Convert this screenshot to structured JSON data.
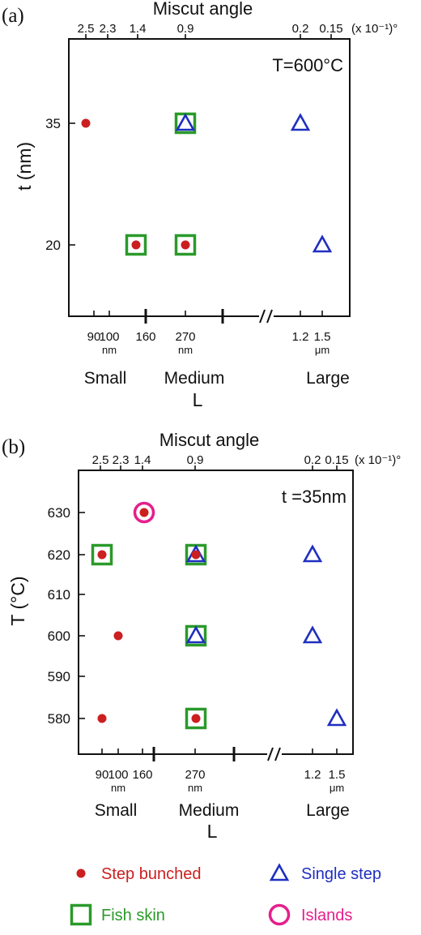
{
  "colors": {
    "step_bunched": "#cc1f1f",
    "fish_skin": "#2a9a2a",
    "single_step": "#1f2fc0",
    "islands": "#e61e8c",
    "axis": "#111111"
  },
  "chart_data": [
    {
      "type": "scatter",
      "panel_label": "(a)",
      "title": "Miscut angle",
      "annotation": "T=600°C",
      "top_tick_labels": [
        "2.5",
        "2.3",
        "1.4",
        "0.9",
        "0.2",
        "0.15"
      ],
      "top_unit": "(x 10⁻¹)°",
      "bottom_ticks": [
        {
          "main": "90",
          "sub": ""
        },
        {
          "main": "100",
          "sub": "nm"
        },
        {
          "main": "160",
          "sub": ""
        },
        {
          "main": "270",
          "sub": "nm"
        },
        {
          "main": "1.2",
          "sub": ""
        },
        {
          "main": "1.5",
          "sub": "μm"
        }
      ],
      "size_groups": [
        "Small",
        "Medium",
        "Large"
      ],
      "xlabel": "L",
      "ylabel": "t (nm)",
      "y_ticks": [
        "35",
        "20"
      ],
      "ylim": [
        10,
        45
      ],
      "points": [
        {
          "x": "100 nm",
          "y": 35,
          "morphology": [
            "step_bunched"
          ]
        },
        {
          "x": "270 nm",
          "y": 35,
          "morphology": [
            "fish_skin",
            "single_step"
          ]
        },
        {
          "x": "1.2 μm",
          "y": 35,
          "morphology": [
            "single_step"
          ]
        },
        {
          "x": "160 nm",
          "y": 20,
          "morphology": [
            "fish_skin",
            "step_bunched"
          ]
        },
        {
          "x": "270 nm",
          "y": 20,
          "morphology": [
            "fish_skin",
            "step_bunched"
          ]
        },
        {
          "x": "1.5 μm",
          "y": 20,
          "morphology": [
            "single_step"
          ]
        }
      ]
    },
    {
      "type": "scatter",
      "panel_label": "(b)",
      "title": "Miscut angle",
      "annotation": "t =35nm",
      "top_tick_labels": [
        "2.5",
        "2.3",
        "1.4",
        "0.9",
        "0.2",
        "0.15"
      ],
      "top_unit": "(x 10⁻¹)°",
      "bottom_ticks": [
        {
          "main": "90",
          "sub": ""
        },
        {
          "main": "100",
          "sub": "nm"
        },
        {
          "main": "160",
          "sub": ""
        },
        {
          "main": "270",
          "sub": "nm"
        },
        {
          "main": "1.2",
          "sub": ""
        },
        {
          "main": "1.5",
          "sub": "μm"
        }
      ],
      "size_groups": [
        "Small",
        "Medium",
        "Large"
      ],
      "xlabel": "L",
      "ylabel": "T (°C)",
      "y_ticks": [
        "630",
        "620",
        "610",
        "600",
        "590",
        "580"
      ],
      "ylim": [
        570,
        640
      ],
      "points": [
        {
          "x": "160 nm",
          "y": 630,
          "morphology": [
            "islands",
            "step_bunched"
          ]
        },
        {
          "x": "90 nm",
          "y": 620,
          "morphology": [
            "fish_skin",
            "step_bunched"
          ]
        },
        {
          "x": "270 nm",
          "y": 620,
          "morphology": [
            "fish_skin",
            "single_step",
            "step_bunched"
          ]
        },
        {
          "x": "1.2 μm",
          "y": 620,
          "morphology": [
            "single_step"
          ]
        },
        {
          "x": "100 nm",
          "y": 600,
          "morphology": [
            "step_bunched"
          ]
        },
        {
          "x": "270 nm",
          "y": 600,
          "morphology": [
            "fish_skin",
            "single_step"
          ]
        },
        {
          "x": "1.2 μm",
          "y": 600,
          "morphology": [
            "single_step"
          ]
        },
        {
          "x": "90 nm",
          "y": 580,
          "morphology": [
            "step_bunched"
          ]
        },
        {
          "x": "270 nm",
          "y": 580,
          "morphology": [
            "fish_skin",
            "step_bunched"
          ]
        },
        {
          "x": "1.5 μm",
          "y": 580,
          "morphology": [
            "single_step"
          ]
        }
      ]
    }
  ],
  "legend": [
    {
      "key": "step_bunched",
      "label": "Step bunched"
    },
    {
      "key": "single_step",
      "label": "Single step"
    },
    {
      "key": "fish_skin",
      "label": "Fish skin"
    },
    {
      "key": "islands",
      "label": "Islands"
    }
  ]
}
